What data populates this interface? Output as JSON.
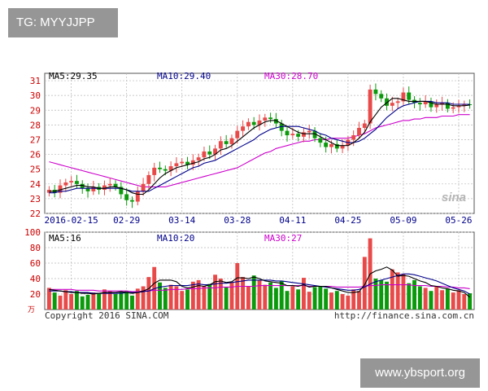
{
  "overlays": {
    "tg": "TG: MYYJJPP",
    "site": "www.ybsport.org"
  },
  "colors": {
    "up": "#e84a4a",
    "down": "#0b9a0b",
    "ma5": "#000000",
    "ma10": "#00008b",
    "ma30": "#cc00cc",
    "price_tick": "#cc0000",
    "date_tick": "#00008b",
    "vol_tick": "#cc0000",
    "grid": "#b8b8b8"
  },
  "chart_data": [
    {
      "type": "candlestick",
      "ylim": [
        22,
        31.5
      ],
      "yticks": [
        "31",
        "30",
        "29",
        "28",
        "27",
        "26",
        "25",
        "24",
        "23",
        "22"
      ],
      "legend": {
        "ma5": "MA5:29.35",
        "ma10": "MA10:29.40",
        "ma30": "MA30:28.70"
      },
      "date_labels": [
        "2016-02-15",
        "02-29",
        "03-14",
        "03-28",
        "04-11",
        "04-25",
        "05-09",
        "05-26"
      ],
      "date_label_index": [
        4,
        14,
        24,
        34,
        44,
        54,
        64,
        74
      ],
      "watermark": "sina",
      "close": [
        23.6,
        23.4,
        23.9,
        24.1,
        24.2,
        24.0,
        23.7,
        23.5,
        23.8,
        23.6,
        23.9,
        24.0,
        23.8,
        23.3,
        22.9,
        22.8,
        23.5,
        24.0,
        24.6,
        25.1,
        25.0,
        24.9,
        25.2,
        25.4,
        25.5,
        25.3,
        25.6,
        25.8,
        26.2,
        26.0,
        26.4,
        26.9,
        26.7,
        27.1,
        27.6,
        27.9,
        28.2,
        28.0,
        28.3,
        28.5,
        28.4,
        28.1,
        27.6,
        27.3,
        27.4,
        27.2,
        27.5,
        27.6,
        27.1,
        26.8,
        26.5,
        26.7,
        26.4,
        26.6,
        27.0,
        27.3,
        27.8,
        28.1,
        30.4,
        30.1,
        29.8,
        29.3,
        29.5,
        29.6,
        30.2,
        29.7,
        29.5,
        29.4,
        29.6,
        29.2,
        29.4,
        29.5,
        29.1,
        29.2,
        29.3,
        29.4,
        29.35
      ],
      "ma5": [
        23.5,
        23.5,
        23.6,
        23.7,
        23.8,
        23.9,
        23.9,
        23.8,
        23.8,
        23.7,
        23.7,
        23.8,
        23.8,
        23.7,
        23.6,
        23.4,
        23.3,
        23.3,
        23.6,
        24.0,
        24.4,
        24.7,
        24.9,
        25.1,
        25.2,
        25.3,
        25.4,
        25.5,
        25.7,
        25.8,
        26.0,
        26.3,
        26.4,
        26.6,
        26.9,
        27.2,
        27.5,
        27.8,
        28.0,
        28.2,
        28.3,
        28.3,
        28.1,
        27.9,
        27.7,
        27.5,
        27.4,
        27.4,
        27.4,
        27.2,
        27.0,
        26.8,
        26.6,
        26.6,
        26.6,
        26.8,
        27.1,
        27.5,
        28.2,
        28.7,
        29.2,
        29.5,
        29.8,
        29.8,
        29.7,
        29.6,
        29.6,
        29.6,
        29.6,
        29.5,
        29.4,
        29.4,
        29.4,
        29.3,
        29.3,
        29.3,
        29.35
      ],
      "ma10": [
        23.4,
        23.4,
        23.5,
        23.5,
        23.6,
        23.7,
        23.7,
        23.7,
        23.7,
        23.7,
        23.7,
        23.7,
        23.7,
        23.7,
        23.6,
        23.5,
        23.5,
        23.5,
        23.5,
        23.7,
        23.9,
        24.1,
        24.3,
        24.5,
        24.7,
        24.9,
        25.1,
        25.2,
        25.4,
        25.5,
        25.6,
        25.8,
        26.0,
        26.2,
        26.4,
        26.6,
        26.8,
        27.0,
        27.3,
        27.5,
        27.7,
        27.8,
        27.9,
        27.9,
        27.9,
        27.9,
        27.8,
        27.7,
        27.6,
        27.4,
        27.3,
        27.1,
        27.0,
        26.9,
        26.8,
        26.8,
        26.9,
        27.1,
        27.4,
        27.7,
        28.1,
        28.5,
        28.8,
        29.1,
        29.3,
        29.4,
        29.5,
        29.6,
        29.6,
        29.6,
        29.5,
        29.5,
        29.5,
        29.4,
        29.4,
        29.4,
        29.4
      ],
      "ma30": [
        25.5,
        25.4,
        25.3,
        25.2,
        25.1,
        25.0,
        24.9,
        24.8,
        24.7,
        24.6,
        24.5,
        24.4,
        24.3,
        24.2,
        24.1,
        24.0,
        23.9,
        23.8,
        23.8,
        23.8,
        23.8,
        23.8,
        23.9,
        24.0,
        24.1,
        24.2,
        24.3,
        24.4,
        24.5,
        24.6,
        24.7,
        24.8,
        24.9,
        25.0,
        25.1,
        25.3,
        25.5,
        25.7,
        25.9,
        26.1,
        26.2,
        26.4,
        26.5,
        26.6,
        26.7,
        26.8,
        26.9,
        26.9,
        27.0,
        27.0,
        27.0,
        27.1,
        27.1,
        27.1,
        27.1,
        27.2,
        27.3,
        27.4,
        27.6,
        27.8,
        27.9,
        28.0,
        28.1,
        28.2,
        28.3,
        28.3,
        28.4,
        28.4,
        28.5,
        28.5,
        28.5,
        28.6,
        28.6,
        28.6,
        28.7,
        28.7,
        28.7
      ]
    },
    {
      "type": "bar",
      "ylim": [
        0,
        100
      ],
      "yticks": [
        "100",
        "80",
        "60",
        "40",
        "20"
      ],
      "unit_label": "万",
      "legend": {
        "ma5": "MA5:16",
        "ma10": "MA10:20",
        "ma30": "MA30:27"
      },
      "volume": [
        28,
        22,
        18,
        25,
        20,
        24,
        17,
        19,
        22,
        21,
        26,
        24,
        20,
        23,
        24,
        18,
        27,
        30,
        42,
        55,
        35,
        28,
        32,
        30,
        24,
        26,
        36,
        38,
        30,
        33,
        45,
        40,
        29,
        35,
        60,
        42,
        30,
        44,
        38,
        32,
        35,
        28,
        37,
        24,
        30,
        26,
        41,
        23,
        29,
        30,
        27,
        22,
        24,
        20,
        18,
        26,
        24,
        68,
        92,
        40,
        38,
        36,
        52,
        48,
        46,
        34,
        38,
        30,
        28,
        24,
        30,
        25,
        27,
        22,
        25,
        20,
        21
      ],
      "ma5": [
        26,
        25,
        24,
        23,
        22,
        22,
        21,
        21,
        20,
        21,
        22,
        22,
        22,
        23,
        22,
        21,
        22,
        24,
        27,
        34,
        38,
        38,
        38,
        36,
        30,
        28,
        29,
        31,
        30,
        32,
        36,
        37,
        35,
        36,
        41,
        41,
        40,
        42,
        40,
        37,
        36,
        35,
        34,
        31,
        31,
        30,
        32,
        29,
        30,
        30,
        30,
        28,
        26,
        24,
        22,
        22,
        23,
        32,
        46,
        50,
        52,
        55,
        51,
        43,
        44,
        43,
        40,
        37,
        35,
        31,
        30,
        28,
        27,
        25,
        24,
        22,
        16
      ],
      "ma10": [
        24,
        24,
        24,
        23,
        23,
        22,
        22,
        22,
        21,
        21,
        21,
        21,
        21,
        21,
        22,
        22,
        22,
        23,
        24,
        27,
        29,
        30,
        31,
        31,
        31,
        31,
        32,
        33,
        32,
        32,
        33,
        34,
        34,
        35,
        36,
        37,
        38,
        38,
        38,
        38,
        38,
        37,
        37,
        36,
        35,
        34,
        33,
        32,
        31,
        30,
        29,
        28,
        27,
        26,
        25,
        25,
        26,
        29,
        33,
        36,
        38,
        40,
        42,
        44,
        46,
        46,
        45,
        43,
        41,
        39,
        37,
        34,
        31,
        28,
        26,
        24,
        20
      ],
      "ma30": [
        26,
        26,
        26,
        26,
        26,
        25,
        25,
        25,
        25,
        24,
        24,
        24,
        24,
        24,
        24,
        23,
        23,
        24,
        24,
        25,
        25,
        25,
        26,
        26,
        26,
        27,
        27,
        27,
        28,
        28,
        28,
        29,
        29,
        29,
        30,
        30,
        30,
        30,
        31,
        31,
        31,
        31,
        31,
        31,
        31,
        31,
        31,
        30,
        30,
        30,
        30,
        30,
        29,
        29,
        29,
        29,
        29,
        30,
        31,
        31,
        32,
        32,
        32,
        32,
        32,
        32,
        31,
        31,
        31,
        30,
        30,
        30,
        29,
        29,
        28,
        28,
        27
      ]
    }
  ],
  "footer": {
    "copyright": "Copyright 2016 SINA.COM",
    "url": "http://finance.sina.com.cn"
  }
}
